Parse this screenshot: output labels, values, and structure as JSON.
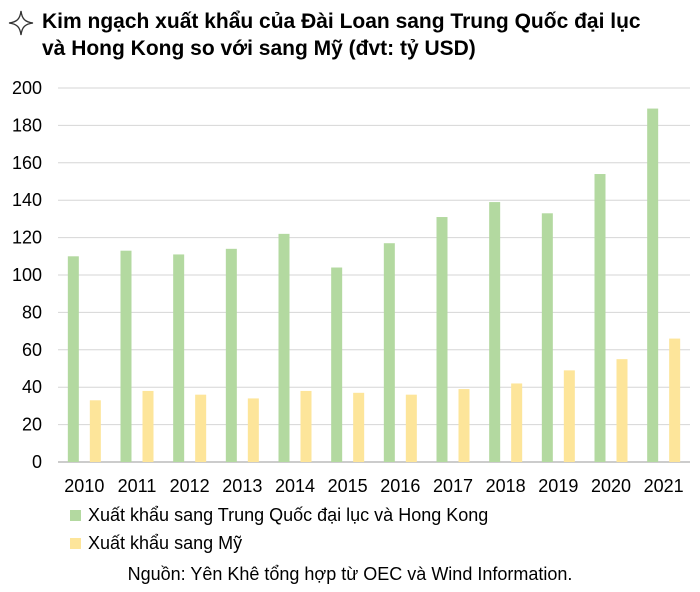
{
  "title": {
    "line1": "Kim ngạch xuất khẩu của Đài Loan sang Trung Quốc đại lục",
    "line2": "và Hong Kong so với sang Mỹ (đvt: tỷ USD)"
  },
  "icon": "sparkle-icon",
  "colors": {
    "series1": "#b3d9a0",
    "series2": "#fde59a",
    "grid": "#d6d6d6",
    "axis": "#999999"
  },
  "chart_data": {
    "type": "bar",
    "categories": [
      "2010",
      "2011",
      "2012",
      "2013",
      "2014",
      "2015",
      "2016",
      "2017",
      "2018",
      "2019",
      "2020",
      "2021"
    ],
    "series": [
      {
        "name": "Xuất khẩu sang Trung Quốc đại lục và Hong Kong",
        "values": [
          110,
          113,
          111,
          114,
          122,
          104,
          117,
          131,
          139,
          133,
          154,
          189
        ]
      },
      {
        "name": "Xuất khẩu sang Mỹ",
        "values": [
          33,
          38,
          36,
          34,
          38,
          37,
          36,
          39,
          42,
          49,
          55,
          66
        ]
      }
    ],
    "yticks": [
      "0",
      "20",
      "40",
      "60",
      "80",
      "100",
      "120",
      "140",
      "160",
      "180",
      "200"
    ],
    "ylim": [
      0,
      200
    ],
    "grid": true,
    "legend_position": "bottom"
  },
  "source": "Nguồn: Yên Khê tổng hợp từ OEC và Wind Information."
}
